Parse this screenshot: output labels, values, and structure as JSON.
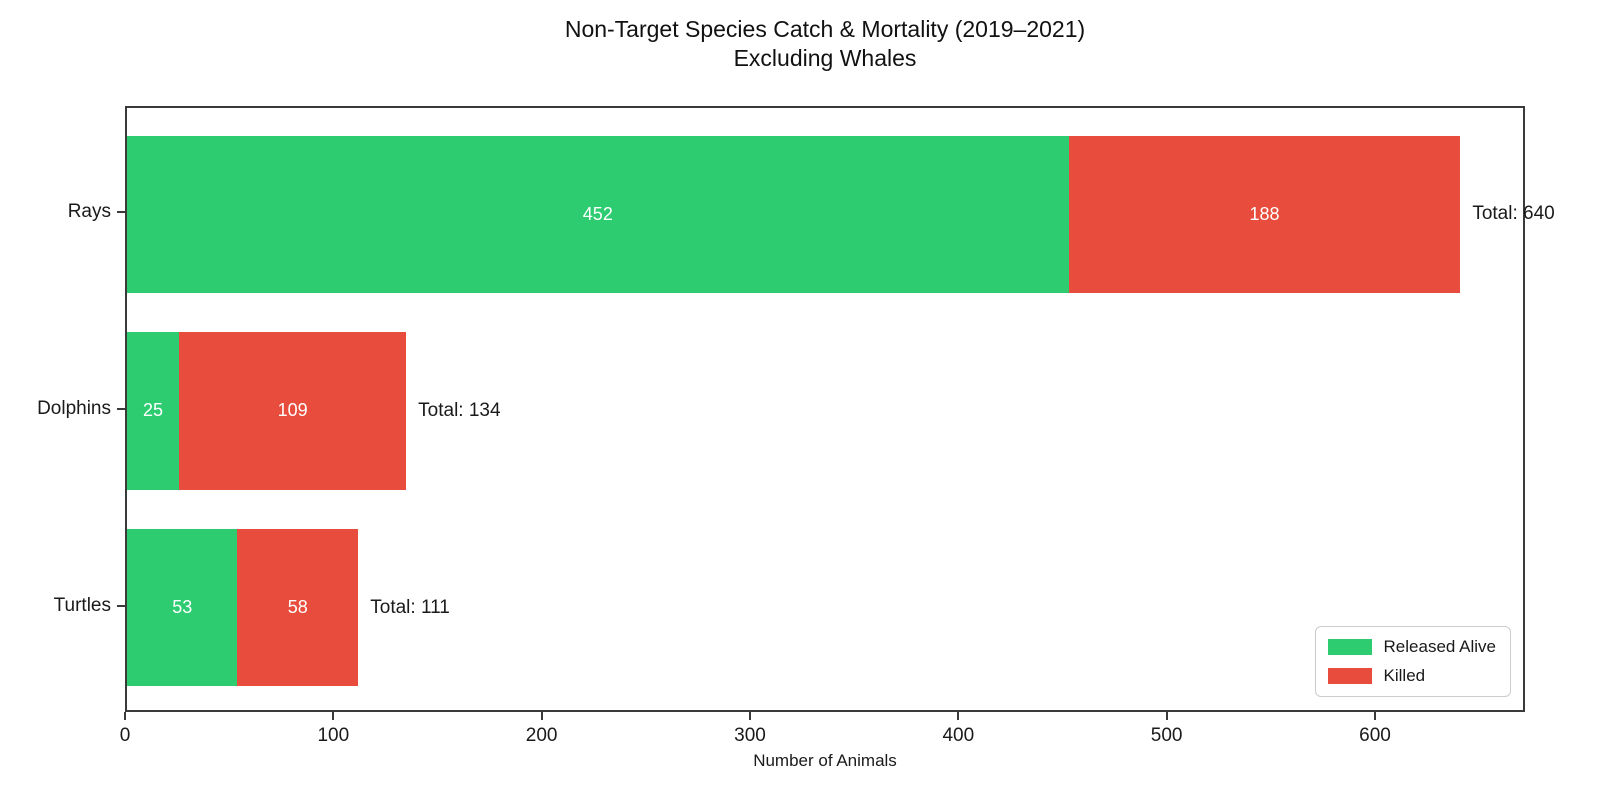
{
  "chart_data": {
    "type": "bar",
    "orientation": "horizontal",
    "stacked": true,
    "title": "Non-Target Species Catch & Mortality (2019–2021)",
    "subtitle": "Excluding Whales",
    "xlabel": "Number of Animals",
    "categories": [
      "Rays",
      "Dolphins",
      "Turtles"
    ],
    "series": [
      {
        "name": "Released Alive",
        "color": "#2ecc71",
        "values": [
          452,
          25,
          53
        ]
      },
      {
        "name": "Killed",
        "color": "#e74c3c",
        "values": [
          188,
          109,
          58
        ]
      }
    ],
    "totals": [
      640,
      134,
      111
    ],
    "total_labels": [
      "Total: 640",
      "Total: 134",
      "Total: 111"
    ],
    "bar_value_label_color": "#ffffff",
    "xticks": [
      0,
      100,
      200,
      300,
      400,
      500,
      600
    ],
    "xtick_labels": [
      "0",
      "100",
      "200",
      "300",
      "400",
      "500",
      "600"
    ],
    "xlim": [
      0,
      672
    ],
    "grid": false,
    "legend_position": "lower right",
    "spine_color": "#3a3a3a",
    "background_color": "#ffffff"
  }
}
